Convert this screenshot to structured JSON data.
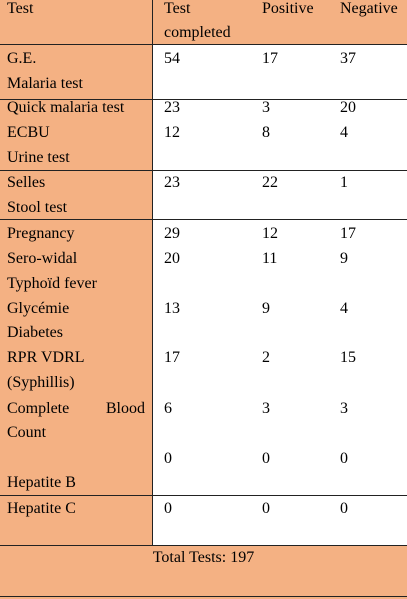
{
  "headers": {
    "test": "Test",
    "completed_line1": "Test",
    "completed_line2": "completed",
    "positive": "Positive",
    "negative": "Negative"
  },
  "rows": [
    {
      "name_line1": "G.E.",
      "name_line2": "Malaria test",
      "completed": "54",
      "positive": "17",
      "negative": "37"
    },
    {
      "name": "Quick malaria test",
      "completed": "23",
      "positive": "3",
      "negative": "20"
    },
    {
      "name_line1": "ECBU",
      "name_line2": "Urine test",
      "completed": "12",
      "positive": "8",
      "negative": "4"
    },
    {
      "name_line1": "Selles",
      "name_line2": "Stool test",
      "completed": "23",
      "positive": "22",
      "negative": "1"
    },
    {
      "name": "Pregnancy",
      "completed": "29",
      "positive": "12",
      "negative": "17"
    },
    {
      "name_line1": "Sero-widal",
      "name_line2": "Typhoïd fever",
      "completed": "20",
      "positive": "11",
      "negative": "9"
    },
    {
      "name_line1": "Glycémie",
      "name_line2": "Diabetes",
      "completed": "13",
      "positive": "9",
      "negative": "4"
    },
    {
      "name_line1": "RPR VDRL",
      "name_line2": "(Syphillis)",
      "completed": "17",
      "positive": "2",
      "negative": "15"
    },
    {
      "name_word1": "Complete",
      "name_word2": "Blood",
      "name_line2": "Count",
      "completed": "6",
      "positive": "3",
      "negative": "3"
    },
    {
      "name": "Hepatite B",
      "completed": "0",
      "positive": "0",
      "negative": "0"
    },
    {
      "name": "Hepatite C",
      "completed": "0",
      "positive": "0",
      "negative": "0"
    }
  ],
  "total": "Total Tests: 197",
  "colors": {
    "header_fill": "#f4b183",
    "border": "#222222"
  }
}
